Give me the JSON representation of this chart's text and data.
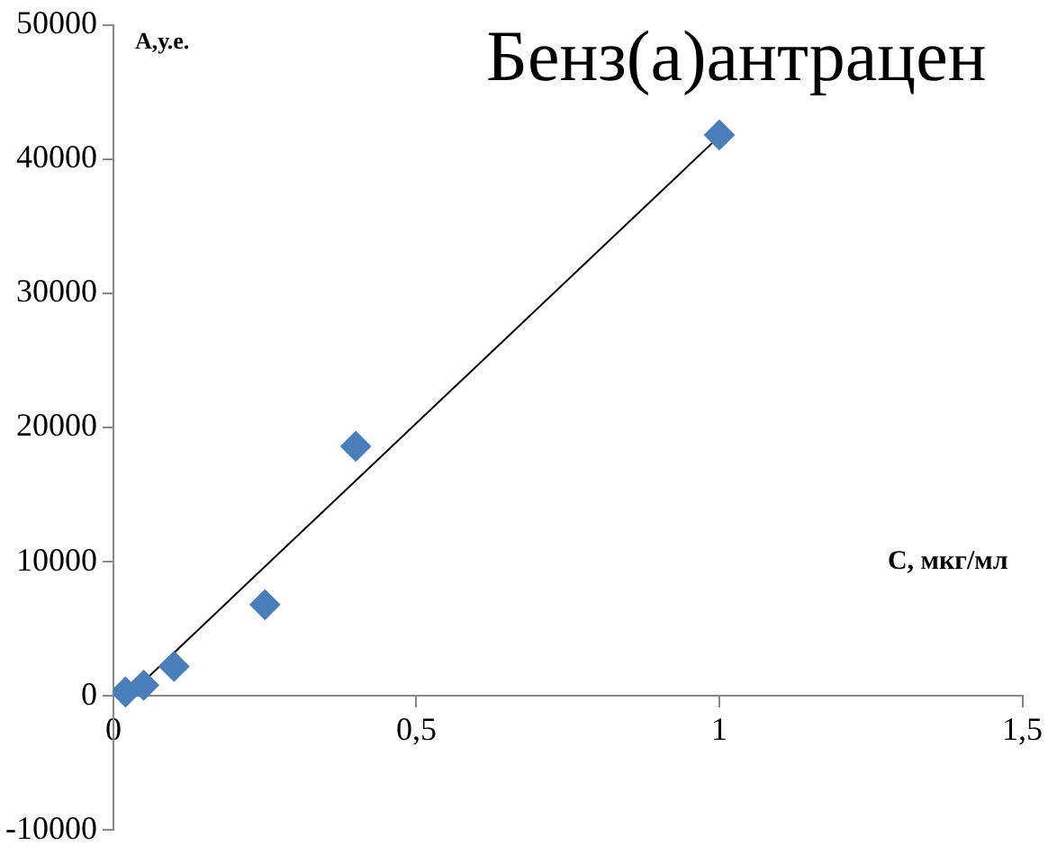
{
  "chart_data": {
    "type": "scatter",
    "title": "Бенз(а)антрацен",
    "xlabel": "С, мкг/мл",
    "ylabel": "А,у.е.",
    "series": [
      {
        "color": "#4a7ebb",
        "marker": "diamond",
        "x": [
          0.02,
          0.05,
          0.1,
          0.25,
          0.4,
          1.0
        ],
        "values": [
          300,
          800,
          2200,
          6800,
          18600,
          41800
        ]
      },
      {
        "type": "line",
        "color": "#000000",
        "marker": "none",
        "x": [
          0.02,
          1.0
        ],
        "values": [
          -200,
          41700
        ]
      }
    ],
    "xlim": [
      0,
      1.5
    ],
    "xticks": [
      {
        "value": 0,
        "label": "0"
      },
      {
        "value": 0.5,
        "label": "0,5"
      },
      {
        "value": 1,
        "label": "1"
      },
      {
        "value": 1.5,
        "label": "1,5"
      }
    ],
    "ylim": [
      -10000,
      50000
    ],
    "yticks": [
      -10000,
      0,
      10000,
      20000,
      30000,
      40000,
      50000
    ],
    "grid": false,
    "legend": false
  }
}
